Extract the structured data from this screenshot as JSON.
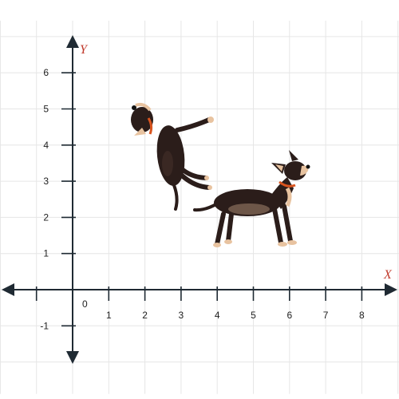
{
  "axes": {
    "x_label": "X",
    "y_label": "Y",
    "x_ticks": [
      "1",
      "2",
      "3",
      "4",
      "5",
      "6",
      "7",
      "8"
    ],
    "y_ticks": [
      "1",
      "2",
      "3",
      "4",
      "5",
      "6"
    ],
    "y_negative_ticks": [
      "-1"
    ],
    "origin_label": "0",
    "x_range": [
      -2,
      9
    ],
    "y_range": [
      -2,
      7
    ],
    "grid": true
  },
  "images": [
    {
      "name": "dog-standing",
      "description": "dog",
      "x_range": [
        3.9,
        6.6
      ],
      "y_range": [
        1.2,
        3.5
      ]
    },
    {
      "name": "dog-leaping",
      "description": "dog",
      "x_range": [
        1.6,
        3.8
      ],
      "y_range": [
        2.3,
        5.2
      ]
    }
  ],
  "colors": {
    "grid": "#e6e6e6",
    "axis": "#1f2a33",
    "axis_label": "#c0392b",
    "dog_fur": "#2b1d1a",
    "dog_tan": "#e8c3a0",
    "collar": "#d9541e"
  }
}
